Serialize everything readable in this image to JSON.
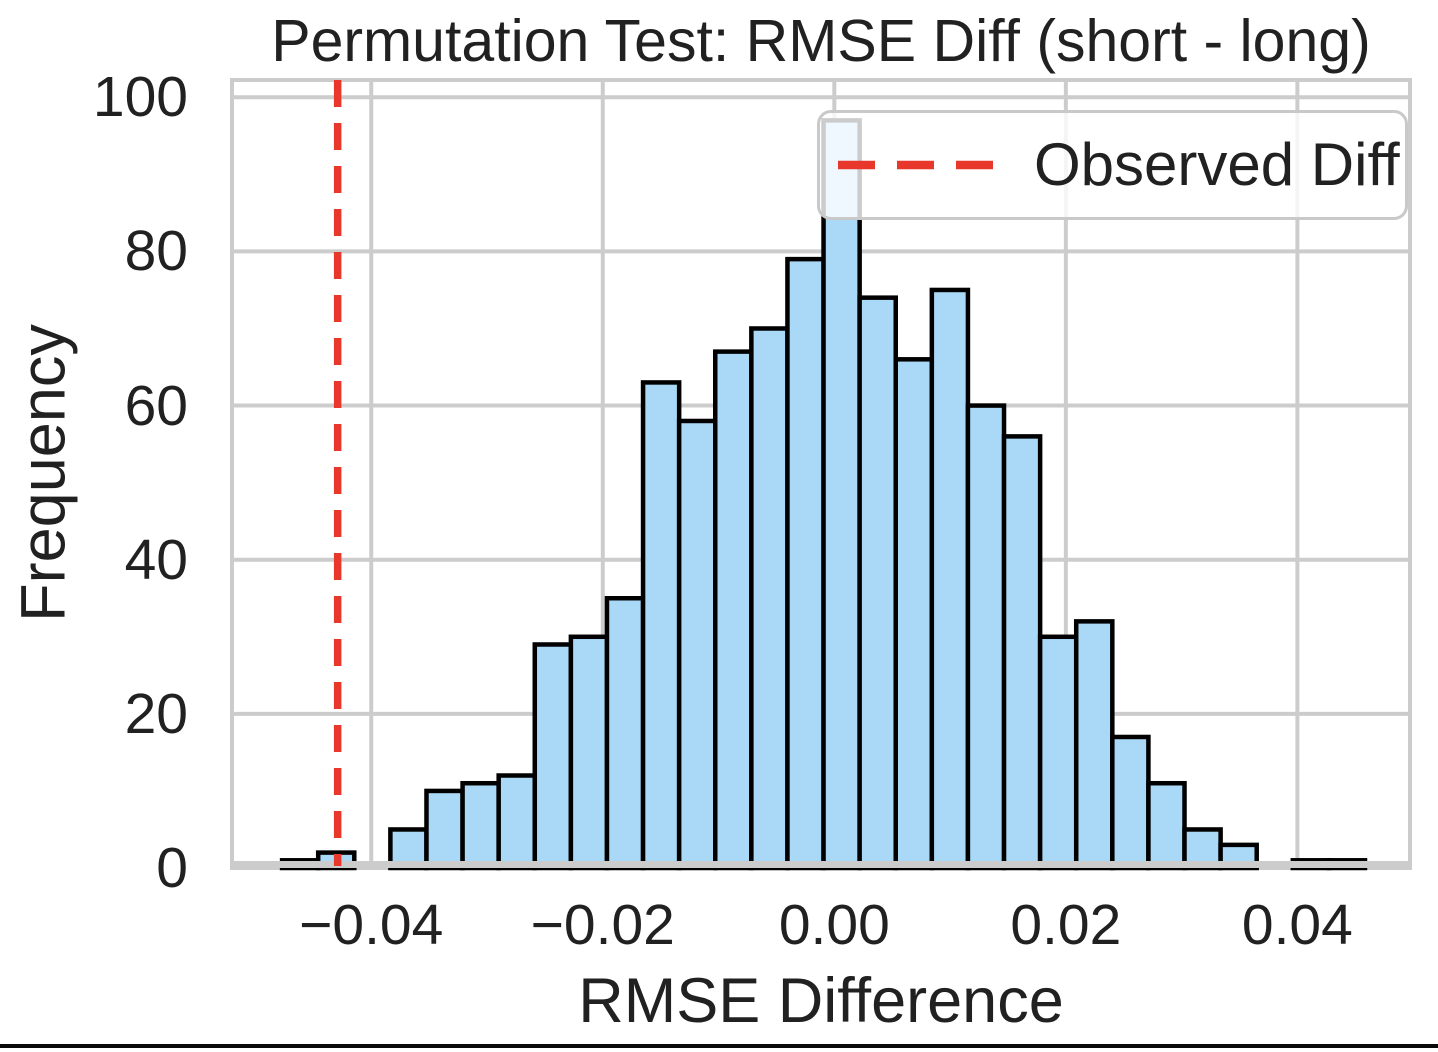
{
  "chart_data": {
    "type": "histogram",
    "title": "Permutation Test: RMSE Diff (short - long)",
    "xlabel": "RMSE Difference",
    "ylabel": "Frequency",
    "legend": {
      "label": "Observed Diff",
      "position": "upper right",
      "line_style": "dashed"
    },
    "observed_diff": -0.0429,
    "bins": {
      "start": -0.0477,
      "width": 0.003118,
      "counts": [
        1,
        2,
        0,
        5,
        10,
        11,
        12,
        29,
        30,
        35,
        63,
        58,
        67,
        70,
        79,
        97,
        74,
        66,
        75,
        60,
        56,
        30,
        32,
        17,
        11,
        5,
        3,
        0,
        1,
        1
      ]
    },
    "xticks": {
      "values": [
        -0.04,
        -0.02,
        0,
        0.02,
        0.04
      ],
      "labels": [
        "−0.04",
        "−0.02",
        "0.00",
        "0.02",
        "0.04"
      ]
    },
    "yticks": {
      "values": [
        0,
        20,
        40,
        60,
        80,
        100
      ],
      "labels": [
        "0",
        "20",
        "40",
        "60",
        "80",
        "100"
      ]
    },
    "xlim": [
      -0.0522,
      0.0499
    ],
    "ylim": [
      0,
      102.5
    ],
    "grid": true,
    "colors": {
      "bar_fill": "#a9d9f7",
      "bar_edge": "#000000",
      "observed_line": "#e8372b",
      "grid_line": "#cccccc",
      "spine": "#cccccc",
      "text": "#212121",
      "legend_bg": "rgba(255,255,255,0.8)",
      "legend_border": "#c9c9c9"
    }
  }
}
